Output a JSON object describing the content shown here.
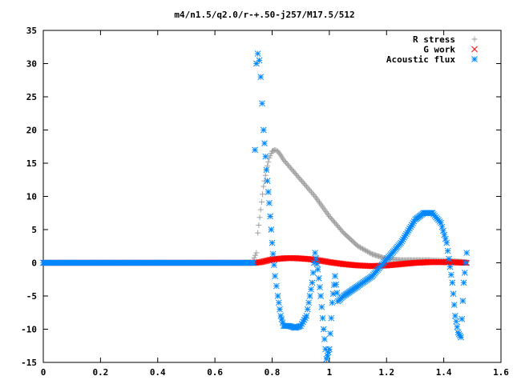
{
  "chart_data": {
    "type": "scatter",
    "title": "m4/n1.5/q2.0/r-+.50-j257/M17.5/512",
    "xlabel": "",
    "ylabel": "",
    "xlim": [
      0,
      1.6
    ],
    "ylim": [
      -15,
      35
    ],
    "x_ticks": [
      0,
      0.2,
      0.4,
      0.6,
      0.8,
      1,
      1.2,
      1.4,
      1.6
    ],
    "x_tick_labels": [
      "0",
      "0.2",
      "0.4",
      "0.6",
      "0.8",
      "1",
      "1.2",
      "1.4",
      "1.6"
    ],
    "y_ticks": [
      -15,
      -10,
      -5,
      0,
      5,
      10,
      15,
      20,
      25,
      30,
      35
    ],
    "y_tick_labels": [
      "-15",
      "-10",
      "-5",
      "0",
      "5",
      "10",
      "15",
      "20",
      "25",
      "30",
      "35"
    ],
    "grid": false,
    "legend_position": "top-right",
    "series": [
      {
        "name": "R stress",
        "marker": "plus",
        "color": "#a0a0a0",
        "x": [
          0,
          0.1,
          0.2,
          0.3,
          0.4,
          0.5,
          0.6,
          0.7,
          0.73,
          0.745,
          0.75,
          0.76,
          0.77,
          0.78,
          0.79,
          0.8,
          0.81,
          0.82,
          0.83,
          0.84,
          0.86,
          0.88,
          0.9,
          0.92,
          0.95,
          1.0,
          1.05,
          1.1,
          1.15,
          1.2,
          1.25,
          1.3,
          1.35,
          1.4,
          1.45,
          1.48
        ],
        "y": [
          0,
          0,
          0,
          0,
          0,
          0,
          0,
          0,
          0,
          1.5,
          4.5,
          8,
          11.5,
          14,
          15.8,
          16.8,
          17.0,
          16.8,
          16.2,
          15.5,
          14.5,
          13.5,
          12.5,
          11.5,
          10.0,
          7.0,
          4.5,
          2.5,
          1.3,
          0.6,
          0.4,
          0.4,
          0.4,
          0.3,
          0.2,
          0.1
        ]
      },
      {
        "name": "G work",
        "marker": "cross",
        "color": "#ff0000",
        "x": [
          0,
          0.1,
          0.2,
          0.3,
          0.4,
          0.5,
          0.6,
          0.7,
          0.74,
          0.76,
          0.78,
          0.8,
          0.82,
          0.85,
          0.88,
          0.9,
          0.93,
          0.96,
          1.0,
          1.05,
          1.1,
          1.15,
          1.2,
          1.25,
          1.3,
          1.35,
          1.4,
          1.45,
          1.48
        ],
        "y": [
          0,
          0,
          0,
          0,
          0,
          0,
          0,
          0,
          0,
          0.1,
          0.3,
          0.5,
          0.6,
          0.7,
          0.7,
          0.65,
          0.55,
          0.4,
          0.1,
          -0.2,
          -0.4,
          -0.5,
          -0.4,
          -0.2,
          0,
          0.1,
          0.1,
          0.05,
          0
        ]
      },
      {
        "name": "Acoustic flux",
        "marker": "star",
        "color": "#0088ff",
        "x": [
          0,
          0.1,
          0.2,
          0.3,
          0.4,
          0.5,
          0.6,
          0.7,
          0.735,
          0.74,
          0.745,
          0.75,
          0.755,
          0.76,
          0.765,
          0.77,
          0.78,
          0.79,
          0.8,
          0.81,
          0.82,
          0.83,
          0.84,
          0.86,
          0.88,
          0.9,
          0.92,
          0.94,
          0.95,
          0.96,
          0.97,
          0.98,
          0.99,
          1.0,
          1.01,
          1.02,
          1.03,
          1.05,
          1.1,
          1.15,
          1.2,
          1.25,
          1.3,
          1.33,
          1.36,
          1.39,
          1.41,
          1.43,
          1.44,
          1.45,
          1.46,
          1.47,
          1.48
        ],
        "y": [
          0,
          0,
          0,
          0,
          0,
          0,
          0,
          0,
          0,
          17,
          30,
          31.5,
          30.5,
          28,
          24,
          20,
          14,
          9,
          3,
          -2,
          -5,
          -8,
          -9.5,
          -9.5,
          -9.8,
          -9.5,
          -8,
          -3,
          1.5,
          -1,
          -5,
          -10,
          -14.5,
          -13,
          -6,
          -2,
          -5.8,
          -5,
          -3.5,
          -2,
          0.5,
          3,
          6.5,
          7.5,
          7.5,
          6,
          3,
          -3,
          -8,
          -10.5,
          -11.2,
          -3,
          1.5
        ]
      }
    ]
  }
}
